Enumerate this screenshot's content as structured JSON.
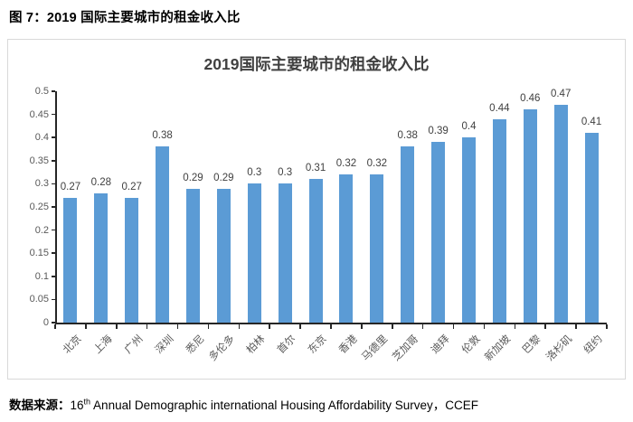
{
  "page": {
    "header": "图 7：2019 国际主要城市的租金收入比",
    "footer": {
      "label": "数据来源：",
      "text_start": "16",
      "text_sup": "th",
      "text_end": " Annual Demographic international Housing Affordability Survey，CCEF"
    }
  },
  "chart_data": {
    "type": "bar",
    "title": "2019国际主要城市的租金收入比",
    "categories": [
      "北京",
      "上海",
      "广州",
      "深圳",
      "悉尼",
      "多伦多",
      "柏林",
      "首尔",
      "东京",
      "香港",
      "马德里",
      "芝加哥",
      "迪拜",
      "伦敦",
      "新加坡",
      "巴黎",
      "洛杉矶",
      "纽约"
    ],
    "values": [
      0.27,
      0.28,
      0.27,
      0.38,
      0.29,
      0.29,
      0.3,
      0.3,
      0.31,
      0.32,
      0.32,
      0.38,
      0.39,
      0.4,
      0.44,
      0.46,
      0.47,
      0.41
    ],
    "value_labels": [
      "0.27",
      "0.28",
      "0.27",
      "0.38",
      "0.29",
      "0.29",
      "0.3",
      "0.3",
      "0.31",
      "0.32",
      "0.32",
      "0.38",
      "0.39",
      "0.4",
      "0.44",
      "0.46",
      "0.47",
      "0.41"
    ],
    "xlabel": "",
    "ylabel": "",
    "ylim": [
      0,
      0.5
    ],
    "ytick_step": 0.05,
    "ytick_labels": [
      "0",
      "0.05",
      "0.1",
      "0.15",
      "0.2",
      "0.25",
      "0.3",
      "0.35",
      "0.4",
      "0.45",
      "0.5"
    ],
    "grid": false,
    "legend": "none",
    "bar_color": "#5b9bd5",
    "axis_color": "#262626",
    "value_label_color": "#404040",
    "tick_label_color": "#595959",
    "frame_border_color": "#d9d9d9"
  }
}
